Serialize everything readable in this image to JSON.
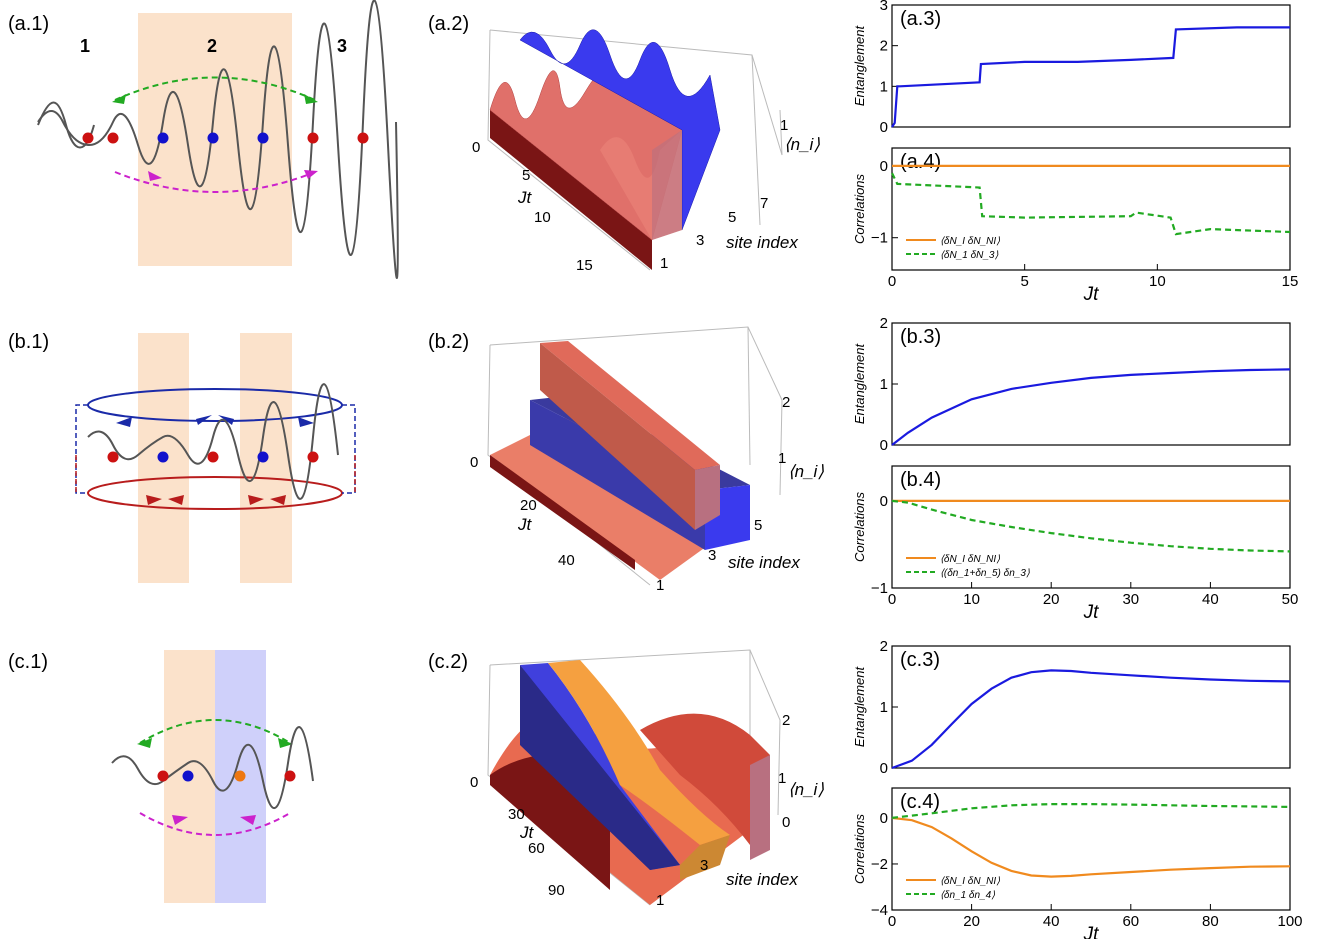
{
  "panel_labels": {
    "a1": "(a.1)",
    "a2": "(a.2)",
    "a3": "(a.3)",
    "a4": "(a.4)",
    "b1": "(b.1)",
    "b2": "(b.2)",
    "b3": "(b.3)",
    "b4": "(b.4)",
    "c1": "(c.1)",
    "c2": "(c.2)",
    "c3": "(c.3)",
    "c4": "(c.4)"
  },
  "regions": [
    "1",
    "2",
    "3"
  ],
  "colors": {
    "region_orange": "#fbe2cb",
    "region_blue": "#cfd0fa",
    "dot_red": "#cc1111",
    "dot_blue": "#1111cc",
    "dot_orange": "#ee7711",
    "green": "#22aa22",
    "magenta": "#cc22cc",
    "ring_blue": "#1a2aa8",
    "ring_red": "#b81c1c"
  },
  "surface_labels": {
    "jt": "Jt",
    "site_index": "site index",
    "ni": "⟨n_i⟩"
  },
  "a2_ticks": {
    "jt": [
      "0",
      "5",
      "10",
      "15"
    ],
    "site": [
      "1",
      "3",
      "5",
      "7"
    ],
    "ni": [
      "0",
      "1"
    ]
  },
  "b2_ticks": {
    "jt": [
      "0",
      "20",
      "40"
    ],
    "site": [
      "1",
      "3",
      "5"
    ],
    "ni": [
      "0",
      "1",
      "2"
    ]
  },
  "c2_ticks": {
    "jt": [
      "0",
      "30",
      "60",
      "90"
    ],
    "site": [
      "1",
      "3"
    ],
    "ni": [
      "0",
      "1",
      "2"
    ]
  },
  "y_labels": {
    "entanglement": "Entanglement",
    "correlations": "Correlations"
  },
  "x_label": "Jt",
  "legends": {
    "a4": [
      "⟨δN_I δN_NI⟩",
      "⟨δN_1 δN_3⟩"
    ],
    "b4": [
      "⟨δN_I δN_NI⟩",
      "⟨(δn_1+δn_5) δn_3⟩"
    ],
    "c4": [
      "⟨δN_I δN_NI⟩",
      "⟨δn_1 δn_4⟩"
    ]
  },
  "chart_data": [
    {
      "id": "a3",
      "type": "line",
      "title": "",
      "xlabel": "",
      "ylabel": "Entanglement",
      "xlim": [
        0,
        15
      ],
      "ylim": [
        0,
        3
      ],
      "yticks": [
        "0",
        "1",
        "2",
        "3"
      ],
      "series": [
        {
          "values_x": [
            0,
            0.1,
            0.2,
            0.3,
            3.3,
            3.35,
            5,
            7,
            9,
            10.6,
            10.7,
            13,
            15
          ],
          "values_y": [
            0,
            0.1,
            1.0,
            1.0,
            1.1,
            1.55,
            1.6,
            1.6,
            1.65,
            1.7,
            2.4,
            2.45,
            2.45
          ]
        }
      ]
    },
    {
      "id": "a4",
      "type": "line",
      "title": "",
      "xlabel": "Jt",
      "ylabel": "Correlations",
      "xlim": [
        0,
        15
      ],
      "ylim": [
        -1.45,
        0.25
      ],
      "yticks": [
        "0",
        "−1"
      ],
      "xticks": [
        "0",
        "5",
        "10",
        "15"
      ],
      "series": [
        {
          "name": "⟨δN_I δN_NI⟩",
          "values_x": [
            0,
            15
          ],
          "values_y": [
            0,
            0
          ]
        },
        {
          "name": "⟨δN_1 δN_3⟩",
          "values_x": [
            0,
            0.2,
            3.3,
            3.4,
            5,
            9,
            9.2,
            10.5,
            10.7,
            12,
            15
          ],
          "values_y": [
            -0.1,
            -0.25,
            -0.3,
            -0.7,
            -0.72,
            -0.7,
            -0.65,
            -0.72,
            -0.95,
            -0.88,
            -0.92
          ]
        }
      ]
    },
    {
      "id": "b3",
      "type": "line",
      "title": "",
      "xlabel": "",
      "ylabel": "Entanglement",
      "xlim": [
        0,
        50
      ],
      "ylim": [
        0,
        2
      ],
      "yticks": [
        "0",
        "1",
        "2"
      ],
      "series": [
        {
          "values_x": [
            0,
            2,
            5,
            10,
            15,
            20,
            25,
            30,
            35,
            40,
            45,
            50
          ],
          "values_y": [
            0,
            0.2,
            0.45,
            0.75,
            0.92,
            1.02,
            1.1,
            1.15,
            1.18,
            1.21,
            1.23,
            1.24
          ]
        }
      ]
    },
    {
      "id": "b4",
      "type": "line",
      "title": "",
      "xlabel": "Jt",
      "ylabel": "Correlations",
      "xlim": [
        0,
        50
      ],
      "ylim": [
        -1,
        0.4
      ],
      "yticks": [
        "0",
        "−1"
      ],
      "xticks": [
        "0",
        "10",
        "20",
        "30",
        "40",
        "50"
      ],
      "series": [
        {
          "name": "⟨δN_I δN_NI⟩",
          "values_x": [
            0,
            50
          ],
          "values_y": [
            0,
            0
          ]
        },
        {
          "name": "⟨(δn_1+δn_5) δn_3⟩",
          "values_x": [
            0,
            2,
            5,
            10,
            15,
            20,
            25,
            30,
            35,
            40,
            45,
            50
          ],
          "values_y": [
            0,
            -0.02,
            -0.1,
            -0.22,
            -0.3,
            -0.37,
            -0.43,
            -0.48,
            -0.52,
            -0.55,
            -0.57,
            -0.58
          ]
        }
      ]
    },
    {
      "id": "c3",
      "type": "line",
      "title": "",
      "xlabel": "",
      "ylabel": "Entanglement",
      "xlim": [
        0,
        100
      ],
      "ylim": [
        0,
        2
      ],
      "yticks": [
        "0",
        "1",
        "2"
      ],
      "series": [
        {
          "values_x": [
            0,
            5,
            10,
            15,
            20,
            25,
            30,
            35,
            40,
            45,
            50,
            60,
            70,
            80,
            90,
            100
          ],
          "values_y": [
            0,
            0.12,
            0.38,
            0.72,
            1.05,
            1.3,
            1.48,
            1.57,
            1.6,
            1.59,
            1.56,
            1.52,
            1.48,
            1.45,
            1.43,
            1.42
          ]
        }
      ]
    },
    {
      "id": "c4",
      "type": "line",
      "title": "",
      "xlabel": "Jt",
      "ylabel": "Correlations",
      "xlim": [
        0,
        100
      ],
      "ylim": [
        -4,
        1.3
      ],
      "yticks": [
        "0",
        "−2",
        "−4"
      ],
      "xticks": [
        "0",
        "20",
        "40",
        "60",
        "80",
        "100"
      ],
      "series": [
        {
          "name": "⟨δN_I δN_NI⟩",
          "values_x": [
            0,
            5,
            10,
            15,
            20,
            25,
            30,
            35,
            40,
            45,
            50,
            60,
            70,
            80,
            90,
            100
          ],
          "values_y": [
            0,
            -0.1,
            -0.4,
            -0.9,
            -1.45,
            -1.95,
            -2.3,
            -2.5,
            -2.55,
            -2.52,
            -2.45,
            -2.35,
            -2.25,
            -2.18,
            -2.12,
            -2.1
          ]
        },
        {
          "name": "⟨δn_1 δn_4⟩",
          "values_x": [
            0,
            10,
            20,
            30,
            40,
            50,
            60,
            70,
            80,
            90,
            100
          ],
          "values_y": [
            0,
            0.2,
            0.42,
            0.55,
            0.6,
            0.6,
            0.58,
            0.55,
            0.52,
            0.5,
            0.48
          ]
        }
      ]
    }
  ]
}
